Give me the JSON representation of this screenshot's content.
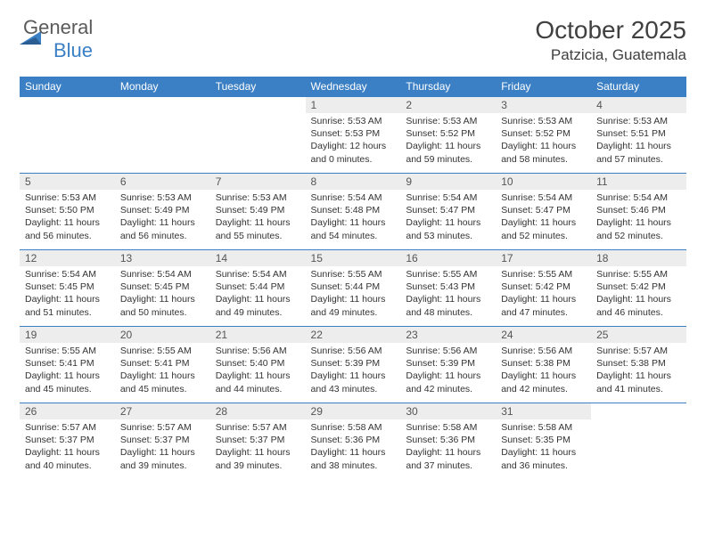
{
  "logo": {
    "word1": "General",
    "word2": "Blue"
  },
  "title": "October 2025",
  "location": "Patzicia, Guatemala",
  "colors": {
    "header_bg": "#3b7fc4",
    "header_text": "#ffffff",
    "daynum_bg": "#ededed",
    "border": "#3b7fc4",
    "text": "#333333",
    "logo_gray": "#5a5a5a",
    "logo_blue": "#3b7fc4",
    "background": "#ffffff"
  },
  "weekdays": [
    "Sunday",
    "Monday",
    "Tuesday",
    "Wednesday",
    "Thursday",
    "Friday",
    "Saturday"
  ],
  "weeks": [
    [
      null,
      null,
      null,
      {
        "n": "1",
        "sr": "5:53 AM",
        "ss": "5:53 PM",
        "dl": "12 hours and 0 minutes."
      },
      {
        "n": "2",
        "sr": "5:53 AM",
        "ss": "5:52 PM",
        "dl": "11 hours and 59 minutes."
      },
      {
        "n": "3",
        "sr": "5:53 AM",
        "ss": "5:52 PM",
        "dl": "11 hours and 58 minutes."
      },
      {
        "n": "4",
        "sr": "5:53 AM",
        "ss": "5:51 PM",
        "dl": "11 hours and 57 minutes."
      }
    ],
    [
      {
        "n": "5",
        "sr": "5:53 AM",
        "ss": "5:50 PM",
        "dl": "11 hours and 56 minutes."
      },
      {
        "n": "6",
        "sr": "5:53 AM",
        "ss": "5:49 PM",
        "dl": "11 hours and 56 minutes."
      },
      {
        "n": "7",
        "sr": "5:53 AM",
        "ss": "5:49 PM",
        "dl": "11 hours and 55 minutes."
      },
      {
        "n": "8",
        "sr": "5:54 AM",
        "ss": "5:48 PM",
        "dl": "11 hours and 54 minutes."
      },
      {
        "n": "9",
        "sr": "5:54 AM",
        "ss": "5:47 PM",
        "dl": "11 hours and 53 minutes."
      },
      {
        "n": "10",
        "sr": "5:54 AM",
        "ss": "5:47 PM",
        "dl": "11 hours and 52 minutes."
      },
      {
        "n": "11",
        "sr": "5:54 AM",
        "ss": "5:46 PM",
        "dl": "11 hours and 52 minutes."
      }
    ],
    [
      {
        "n": "12",
        "sr": "5:54 AM",
        "ss": "5:45 PM",
        "dl": "11 hours and 51 minutes."
      },
      {
        "n": "13",
        "sr": "5:54 AM",
        "ss": "5:45 PM",
        "dl": "11 hours and 50 minutes."
      },
      {
        "n": "14",
        "sr": "5:54 AM",
        "ss": "5:44 PM",
        "dl": "11 hours and 49 minutes."
      },
      {
        "n": "15",
        "sr": "5:55 AM",
        "ss": "5:44 PM",
        "dl": "11 hours and 49 minutes."
      },
      {
        "n": "16",
        "sr": "5:55 AM",
        "ss": "5:43 PM",
        "dl": "11 hours and 48 minutes."
      },
      {
        "n": "17",
        "sr": "5:55 AM",
        "ss": "5:42 PM",
        "dl": "11 hours and 47 minutes."
      },
      {
        "n": "18",
        "sr": "5:55 AM",
        "ss": "5:42 PM",
        "dl": "11 hours and 46 minutes."
      }
    ],
    [
      {
        "n": "19",
        "sr": "5:55 AM",
        "ss": "5:41 PM",
        "dl": "11 hours and 45 minutes."
      },
      {
        "n": "20",
        "sr": "5:55 AM",
        "ss": "5:41 PM",
        "dl": "11 hours and 45 minutes."
      },
      {
        "n": "21",
        "sr": "5:56 AM",
        "ss": "5:40 PM",
        "dl": "11 hours and 44 minutes."
      },
      {
        "n": "22",
        "sr": "5:56 AM",
        "ss": "5:39 PM",
        "dl": "11 hours and 43 minutes."
      },
      {
        "n": "23",
        "sr": "5:56 AM",
        "ss": "5:39 PM",
        "dl": "11 hours and 42 minutes."
      },
      {
        "n": "24",
        "sr": "5:56 AM",
        "ss": "5:38 PM",
        "dl": "11 hours and 42 minutes."
      },
      {
        "n": "25",
        "sr": "5:57 AM",
        "ss": "5:38 PM",
        "dl": "11 hours and 41 minutes."
      }
    ],
    [
      {
        "n": "26",
        "sr": "5:57 AM",
        "ss": "5:37 PM",
        "dl": "11 hours and 40 minutes."
      },
      {
        "n": "27",
        "sr": "5:57 AM",
        "ss": "5:37 PM",
        "dl": "11 hours and 39 minutes."
      },
      {
        "n": "28",
        "sr": "5:57 AM",
        "ss": "5:37 PM",
        "dl": "11 hours and 39 minutes."
      },
      {
        "n": "29",
        "sr": "5:58 AM",
        "ss": "5:36 PM",
        "dl": "11 hours and 38 minutes."
      },
      {
        "n": "30",
        "sr": "5:58 AM",
        "ss": "5:36 PM",
        "dl": "11 hours and 37 minutes."
      },
      {
        "n": "31",
        "sr": "5:58 AM",
        "ss": "5:35 PM",
        "dl": "11 hours and 36 minutes."
      },
      null
    ]
  ],
  "labels": {
    "sunrise": "Sunrise:",
    "sunset": "Sunset:",
    "daylight": "Daylight:"
  }
}
